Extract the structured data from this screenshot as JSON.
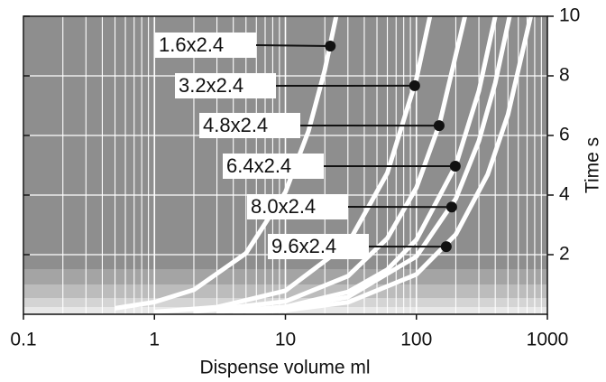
{
  "chart_data": {
    "type": "line",
    "xlabel": "Dispense volume ml",
    "ylabel": "Time s",
    "xscale": "log",
    "xlim": [
      0.1,
      1000
    ],
    "xticks": [
      0.1,
      1,
      10,
      100,
      1000
    ],
    "ylim": [
      0,
      10
    ],
    "yticks": [
      2,
      4,
      6,
      8,
      10
    ],
    "grid": true,
    "series": [
      {
        "name": "1.6x2.4",
        "color": "#ffffff",
        "x": [
          0.5,
          1,
          2,
          5,
          10,
          15,
          20,
          24.4
        ],
        "values": [
          0.2,
          0.41,
          0.82,
          2.05,
          4.1,
          6.15,
          8.2,
          10
        ],
        "dot": {
          "x": 22,
          "y": 9
        }
      },
      {
        "name": "3.2x2.4",
        "color": "#ffffff",
        "x": [
          1,
          3,
          10,
          30,
          60,
          100,
          127
        ],
        "values": [
          0.08,
          0.24,
          0.79,
          2.37,
          4.74,
          7.9,
          10
        ],
        "dot": {
          "x": 97,
          "y": 7.67
        }
      },
      {
        "name": "4.8x2.4",
        "color": "#ffffff",
        "x": [
          2,
          10,
          30,
          60,
          100,
          150,
          235
        ],
        "values": [
          0.085,
          0.43,
          1.28,
          2.55,
          4.25,
          6.38,
          10
        ],
        "dot": {
          "x": 149,
          "y": 6.33
        }
      },
      {
        "name": "6.4x2.4",
        "color": "#ffffff",
        "x": [
          3,
          10,
          30,
          60,
          100,
          200,
          300,
          400
        ],
        "values": [
          0.075,
          0.25,
          0.75,
          1.5,
          2.5,
          5,
          7.5,
          10
        ],
        "dot": {
          "x": 198,
          "y": 4.97
        }
      },
      {
        "name": "8.0x2.4",
        "color": "#ffffff",
        "x": [
          4,
          10,
          30,
          100,
          200,
          300,
          400,
          515
        ],
        "values": [
          0.078,
          0.19,
          0.58,
          1.94,
          3.88,
          5.82,
          7.76,
          10
        ],
        "dot": {
          "x": 186,
          "y": 3.6
        }
      },
      {
        "name": "9.6x2.4",
        "color": "#ffffff",
        "x": [
          5,
          10,
          30,
          100,
          200,
          350,
          500,
          746
        ],
        "values": [
          0.067,
          0.13,
          0.4,
          1.34,
          2.68,
          4.69,
          6.7,
          10
        ],
        "dot": {
          "x": 169,
          "y": 2.27
        }
      }
    ]
  }
}
